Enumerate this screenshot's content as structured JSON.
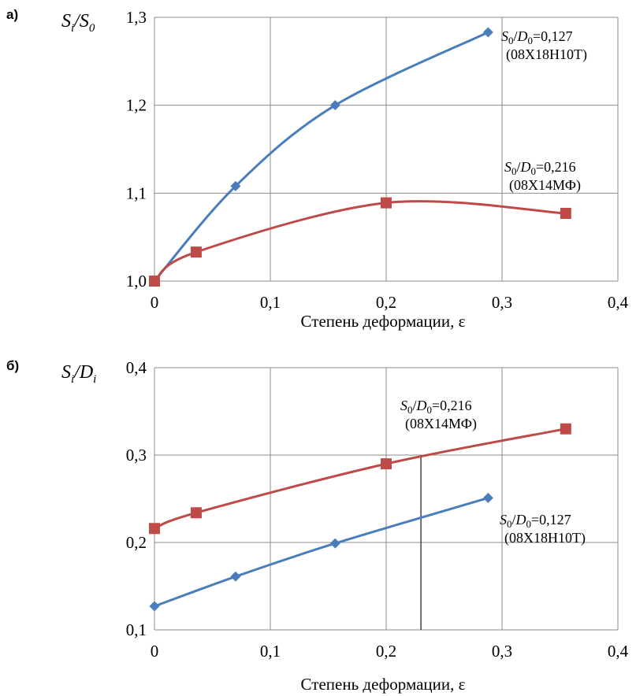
{
  "chart_data": [
    {
      "panel": "а)",
      "type": "line",
      "ylabel": "S_i/S_0",
      "xlabel": "Степень деформации, ε",
      "xlim": [
        0,
        0.4
      ],
      "ylim": [
        1.0,
        1.3
      ],
      "xticks": [
        "0",
        "0,1",
        "0,2",
        "0,3",
        "0,4"
      ],
      "yticks": [
        "1,0",
        "1,1",
        "1,2",
        "1,3"
      ],
      "grid": true,
      "series": [
        {
          "name": "S0/D0=0,127 (08Х18Н10Т)",
          "label_line1": "S0/D0=0,127",
          "label_line2": "(08Х18Н10Т)",
          "color": "#4a7ebb",
          "marker": "diamond",
          "x": [
            0,
            0.07,
            0.156,
            0.288
          ],
          "y": [
            1.0,
            1.108,
            1.2,
            1.283
          ]
        },
        {
          "name": "S0/D0=0,216 (08Х14МФ)",
          "label_line1": "S0/D0=0,216",
          "label_line2": "(08Х14МФ)",
          "color": "#be4b48",
          "marker": "square",
          "x": [
            0,
            0.036,
            0.2,
            0.355
          ],
          "y": [
            1.0,
            1.033,
            1.089,
            1.077
          ]
        }
      ]
    },
    {
      "panel": "б)",
      "type": "line",
      "ylabel": "S_i/D_i",
      "xlabel": "Степень деформации, ε",
      "xlim": [
        0,
        0.4
      ],
      "ylim": [
        0.1,
        0.4
      ],
      "xticks": [
        "0",
        "0,1",
        "0,2",
        "0,3",
        "0,4"
      ],
      "yticks": [
        "0,1",
        "0,2",
        "0,3",
        "0,4"
      ],
      "grid": true,
      "vertical_marker_x": 0.23,
      "series": [
        {
          "name": "S0/D0=0,216 (08Х14МФ)",
          "label_line1": "S0/D0=0,216",
          "label_line2": "(08Х14МФ)",
          "color": "#be4b48",
          "marker": "square",
          "x": [
            0,
            0.036,
            0.2,
            0.355
          ],
          "y": [
            0.216,
            0.234,
            0.29,
            0.33
          ]
        },
        {
          "name": "S0/D0=0,127 (08Х18Н10Т)",
          "label_line1": "S0/D0=0,127",
          "label_line2": "(08Х18Н10Т)",
          "color": "#4a7ebb",
          "marker": "diamond",
          "x": [
            0,
            0.07,
            0.156,
            0.288
          ],
          "y": [
            0.127,
            0.161,
            0.199,
            0.251
          ]
        }
      ]
    }
  ]
}
